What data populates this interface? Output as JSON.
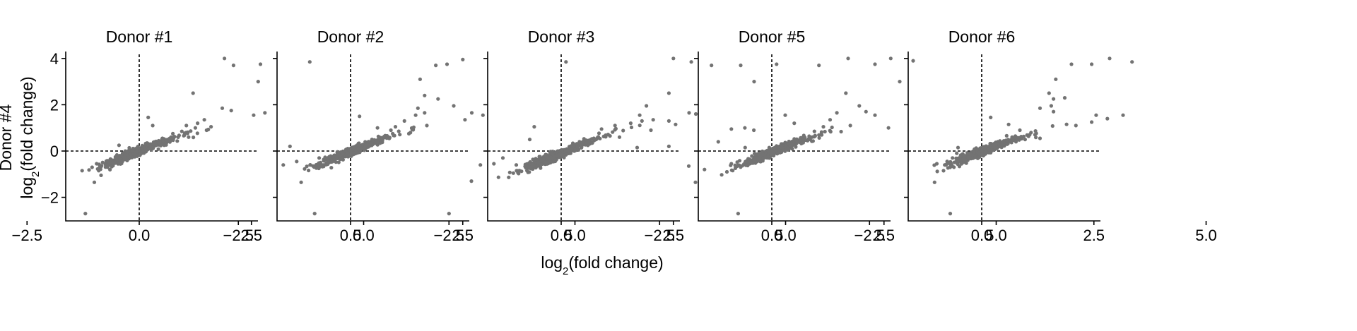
{
  "chart_data": {
    "type": "scatter",
    "panels": [
      {
        "title": "Donor #1",
        "cluster": [
          -0.2,
          -0.15
        ],
        "extra": [
          [
            1.9,
            4.0
          ],
          [
            2.1,
            3.7
          ],
          [
            2.7,
            3.75
          ],
          [
            3.8,
            3.85
          ],
          [
            2.65,
            3.0
          ],
          [
            1.2,
            2.5
          ],
          [
            1.85,
            1.85
          ],
          [
            2.05,
            1.75
          ],
          [
            2.55,
            1.55
          ],
          [
            2.8,
            1.65
          ],
          [
            1.45,
            1.35
          ],
          [
            1.6,
            1.05
          ],
          [
            1.3,
            1.2
          ],
          [
            1.5,
            0.9
          ],
          [
            -1.2,
            -2.7
          ],
          [
            -1.0,
            -1.35
          ],
          [
            -0.85,
            -1.05
          ],
          [
            -1.05,
            -0.7
          ],
          [
            -0.95,
            -0.55
          ],
          [
            0.95,
            0.85
          ],
          [
            1.05,
            1.1
          ],
          [
            1.25,
            1.0
          ],
          [
            0.2,
            1.45
          ],
          [
            0.75,
            0.75
          ],
          [
            0.3,
            1.1
          ],
          [
            1.1,
            0.6
          ],
          [
            -0.45,
            0.25
          ],
          [
            -0.5,
            -0.25
          ]
        ]
      },
      {
        "title": "Donor #2",
        "cluster": [
          -0.1,
          -0.1
        ],
        "extra": [
          [
            4.8,
            3.85
          ],
          [
            2.5,
            3.95
          ],
          [
            1.9,
            3.7
          ],
          [
            2.15,
            3.75
          ],
          [
            1.55,
            3.1
          ],
          [
            1.65,
            2.4
          ],
          [
            1.95,
            2.25
          ],
          [
            2.3,
            1.95
          ],
          [
            1.5,
            1.85
          ],
          [
            1.65,
            1.65
          ],
          [
            2.7,
            1.65
          ],
          [
            2.95,
            1.55
          ],
          [
            2.55,
            1.35
          ],
          [
            1.45,
            1.55
          ],
          [
            1.2,
            1.3
          ],
          [
            1.7,
            1.1
          ],
          [
            1.0,
            1.05
          ],
          [
            -0.8,
            -2.7
          ],
          [
            -1.1,
            -1.35
          ],
          [
            -0.9,
            -0.6
          ],
          [
            -1.5,
            -0.6
          ],
          [
            -1.2,
            -0.45
          ],
          [
            -1.35,
            0.2
          ],
          [
            0.2,
            1.5
          ],
          [
            0.6,
            1.0
          ],
          [
            0.9,
            0.9
          ],
          [
            1.3,
            0.75
          ],
          [
            -0.7,
            -0.3
          ]
        ]
      },
      {
        "title": "Donor #3",
        "cluster": [
          -0.2,
          -0.25
        ],
        "extra": [
          [
            2.5,
            4.0
          ],
          [
            2.9,
            3.85
          ],
          [
            3.35,
            3.7
          ],
          [
            4.0,
            3.7
          ],
          [
            4.8,
            3.75
          ],
          [
            4.3,
            3.0
          ],
          [
            2.4,
            2.5
          ],
          [
            1.9,
            1.95
          ],
          [
            2.85,
            1.65
          ],
          [
            1.75,
            1.55
          ],
          [
            2.05,
            1.35
          ],
          [
            2.4,
            1.3
          ],
          [
            2.55,
            1.15
          ],
          [
            3.0,
            1.6
          ],
          [
            1.8,
            1.3
          ],
          [
            1.2,
            1.1
          ],
          [
            1.55,
            1.2
          ],
          [
            -2.5,
            -2.7
          ],
          [
            -2.0,
            -1.3
          ],
          [
            -1.8,
            -0.6
          ],
          [
            -1.5,
            -0.55
          ],
          [
            -1.3,
            -0.3
          ],
          [
            -0.6,
            1.05
          ],
          [
            -0.7,
            0.5
          ],
          [
            -1.0,
            -0.6
          ],
          [
            4.1,
            0.15
          ],
          [
            2.4,
            0.2
          ],
          [
            3.5,
            0.4
          ],
          [
            0.9,
            0.95
          ],
          [
            1.3,
            0.6
          ],
          [
            2.0,
            0.9
          ]
        ]
      },
      {
        "title": "Donor #5",
        "cluster": [
          0.0,
          -0.05
        ],
        "extra": [
          [
            1.7,
            4.0
          ],
          [
            2.65,
            4.0
          ],
          [
            3.15,
            3.9
          ],
          [
            2.3,
            3.75
          ],
          [
            1.05,
            3.7
          ],
          [
            2.85,
            3.0
          ],
          [
            1.65,
            2.5
          ],
          [
            1.95,
            1.95
          ],
          [
            2.1,
            1.7
          ],
          [
            1.45,
            1.65
          ],
          [
            1.3,
            1.35
          ],
          [
            2.3,
            1.55
          ],
          [
            1.75,
            1.1
          ],
          [
            1.15,
            1.05
          ],
          [
            2.6,
            1.0
          ],
          [
            4.15,
            0.15
          ],
          [
            -3.0,
            0.15
          ],
          [
            -1.85,
            -0.65
          ],
          [
            -1.7,
            -1.35
          ],
          [
            -1.5,
            -0.8
          ],
          [
            -1.0,
            -0.9
          ],
          [
            -0.9,
            -0.55
          ],
          [
            -0.75,
            -2.7
          ],
          [
            -0.9,
            0.95
          ],
          [
            -0.6,
            1.0
          ],
          [
            -0.4,
            0.9
          ],
          [
            0.3,
            1.55
          ],
          [
            0.95,
            0.85
          ],
          [
            0.5,
            1.2
          ]
        ]
      },
      {
        "title": "Donor #6",
        "cluster": [
          -0.05,
          -0.05
        ],
        "extra": [
          [
            2.85,
            4.0
          ],
          [
            3.35,
            3.85
          ],
          [
            2.0,
            3.75
          ],
          [
            2.45,
            3.75
          ],
          [
            1.65,
            3.1
          ],
          [
            1.5,
            2.5
          ],
          [
            1.85,
            2.3
          ],
          [
            1.6,
            2.25
          ],
          [
            1.55,
            1.95
          ],
          [
            1.6,
            1.7
          ],
          [
            1.3,
            1.85
          ],
          [
            2.55,
            1.55
          ],
          [
            3.15,
            1.55
          ],
          [
            2.8,
            1.4
          ],
          [
            2.45,
            1.25
          ],
          [
            2.1,
            1.1
          ],
          [
            -0.7,
            -2.7
          ],
          [
            -1.05,
            -1.35
          ],
          [
            -0.85,
            -0.85
          ],
          [
            -0.8,
            -0.6
          ],
          [
            -1.0,
            -0.55
          ],
          [
            -0.65,
            -0.3
          ],
          [
            0.2,
            1.45
          ],
          [
            0.6,
            1.15
          ],
          [
            0.85,
            0.9
          ],
          [
            1.1,
            0.8
          ],
          [
            1.3,
            0.55
          ]
        ]
      }
    ],
    "xticks": [
      -2.5,
      0.0,
      2.5,
      5.0
    ],
    "xtick_labels": [
      "−2.5",
      "0.0",
      "2.5",
      "5.0"
    ],
    "yticks": [
      -2,
      0,
      2,
      4
    ],
    "ytick_labels": [
      "−2",
      "0",
      "2",
      "4"
    ],
    "xlim": [
      -3.3,
      5.3
    ],
    "ylim": [
      -3.1,
      4.3
    ],
    "xlabel": {
      "prefix": "log",
      "sub": "2",
      "suffix": "(fold change)"
    },
    "ylabel_line1": "Donor #4",
    "ylabel_line2": {
      "prefix": "log",
      "sub": "2",
      "suffix": "(fold change)"
    },
    "reference_lines": {
      "x": 0,
      "y": 0,
      "style": "dashed"
    },
    "point_color": "#737373",
    "grid": false
  }
}
